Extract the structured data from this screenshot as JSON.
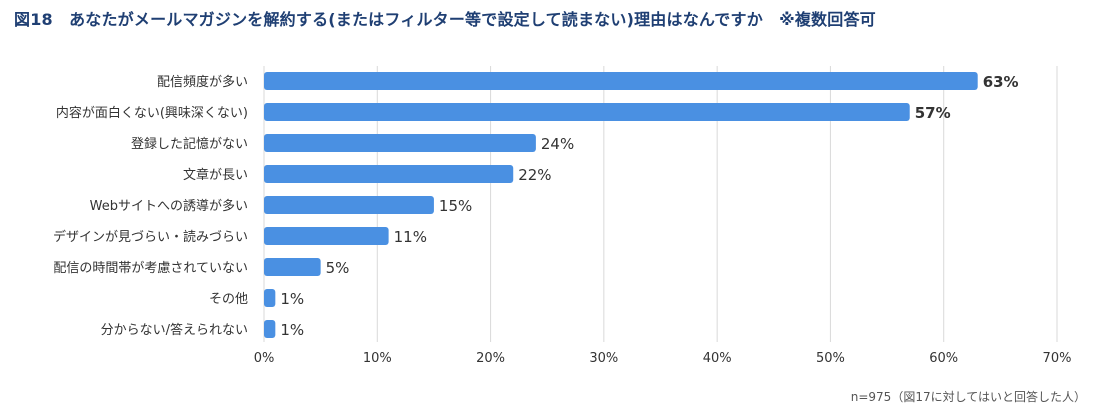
{
  "chart_data": {
    "type": "bar",
    "orientation": "horizontal",
    "title": "図18　あなたがメールマガジンを解約する(またはフィルター等で設定して読まない)理由はなんですか　※複数回答可",
    "categories": [
      "配信頻度が多い",
      "内容が面白くない(興味深くない)",
      "登録した記憶がない",
      "文章が長い",
      "Webサイトへの誘導が多い",
      "デザインが見づらい・読みづらい",
      "配信の時間帯が考慮されていない",
      "その他",
      "分からない/答えられない"
    ],
    "values": [
      63,
      57,
      24,
      22,
      15,
      11,
      5,
      1,
      1
    ],
    "value_labels": [
      "63%",
      "57%",
      "24%",
      "22%",
      "15%",
      "11%",
      "5%",
      "1%",
      "1%"
    ],
    "bold_value_indices": [
      0,
      1
    ],
    "xlim": [
      0,
      70
    ],
    "xticks": [
      "0%",
      "10%",
      "20%",
      "30%",
      "40%",
      "50%",
      "60%",
      "70%"
    ],
    "grid": true,
    "bar_color": "#4a90e2",
    "grid_color": "#d9d9d9"
  },
  "footnote": "n=975（図17に対してはいと回答した人）"
}
